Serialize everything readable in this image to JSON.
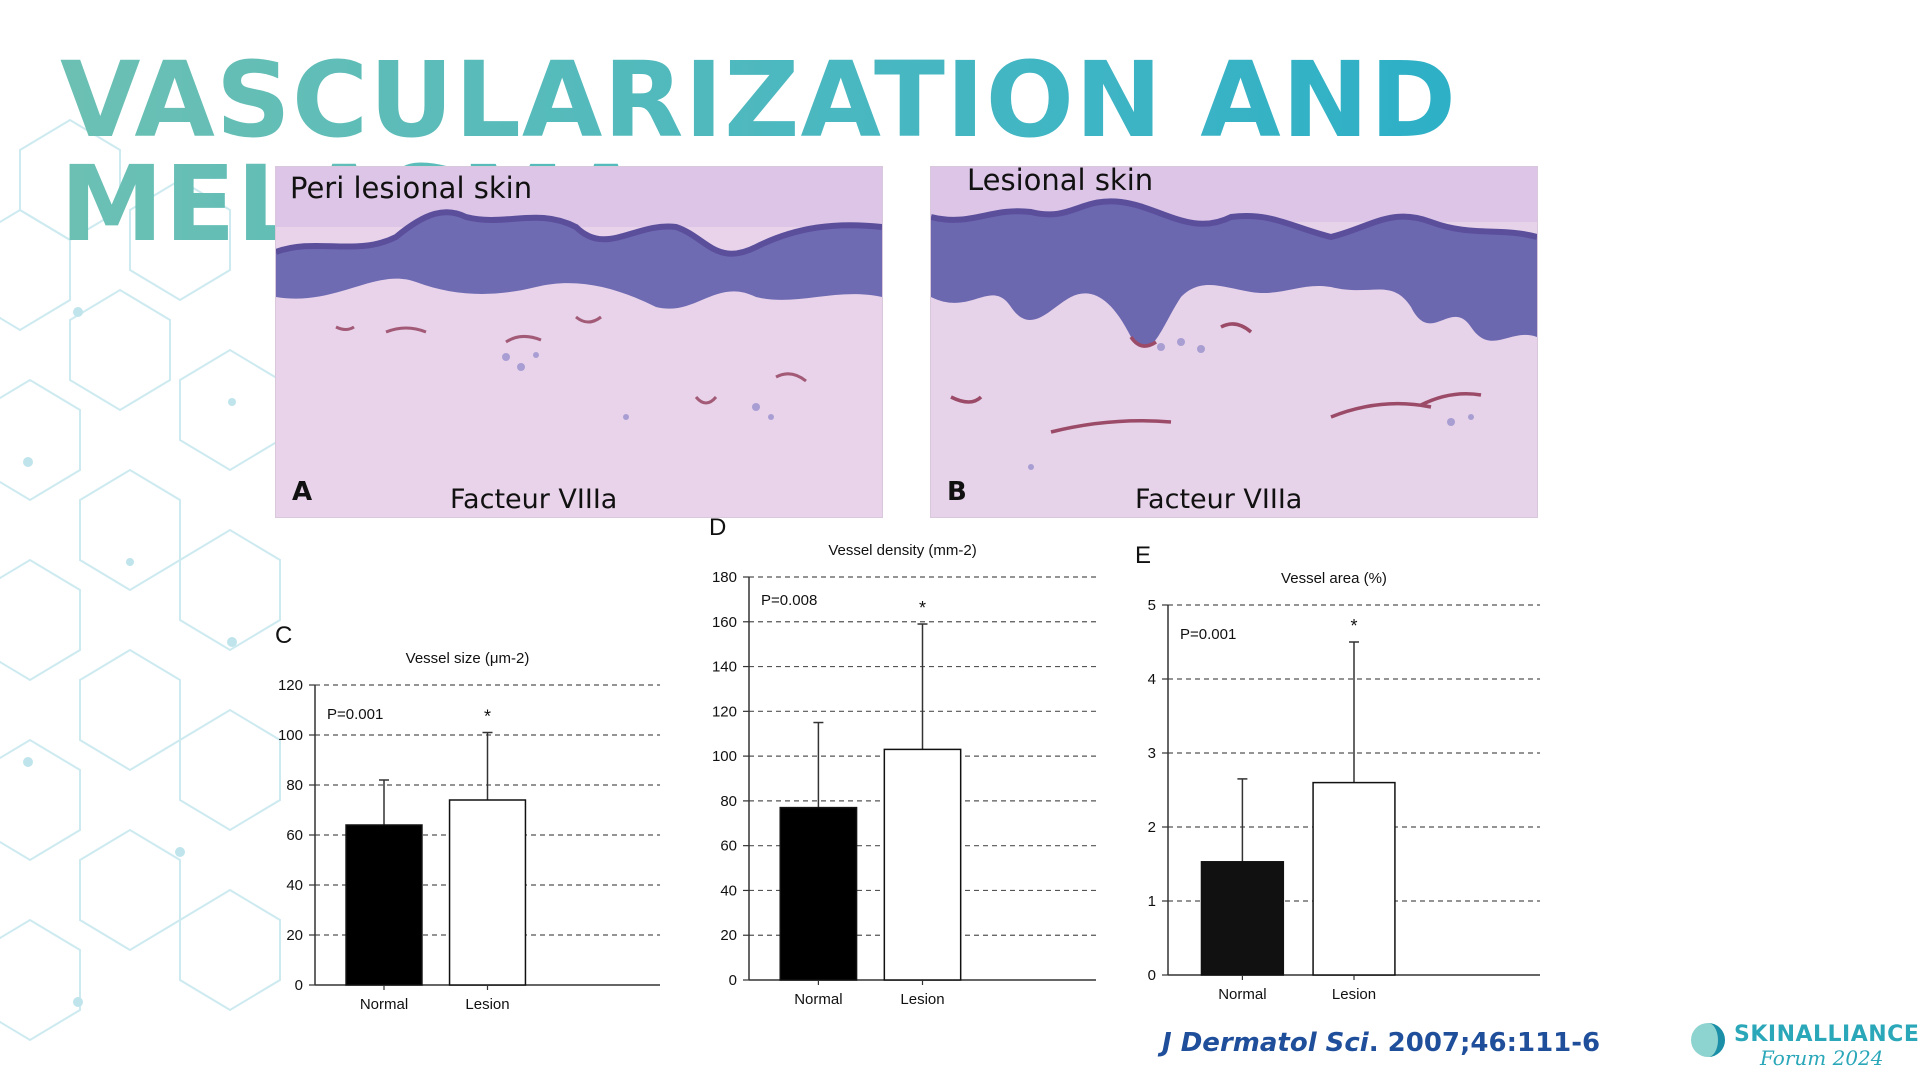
{
  "title": "VASCULARIZATION AND MELASMA",
  "histology": [
    {
      "letter": "A",
      "label": "Peri lesional  skin",
      "stain": "Facteur VIIIa"
    },
    {
      "letter": "B",
      "label": "Lesional skin",
      "stain": "Facteur VIIIa"
    }
  ],
  "chart_data": [
    {
      "panel": "C",
      "type": "bar",
      "title": "Vessel size (μm-2)",
      "categories": [
        "Normal",
        "Lesion"
      ],
      "values": [
        64,
        74
      ],
      "error": [
        18,
        27
      ],
      "ylim": [
        0,
        120
      ],
      "yticks": [
        0,
        20,
        40,
        60,
        80,
        100,
        120
      ],
      "pvalue": "P=0.001",
      "significance": "*",
      "grid": "dashed",
      "bar_colors": [
        "#000000",
        "#ffffff"
      ]
    },
    {
      "panel": "D",
      "type": "bar",
      "title": "Vessel density (mm-2)",
      "categories": [
        "Normal",
        "Lesion"
      ],
      "values": [
        77,
        103
      ],
      "error": [
        38,
        56
      ],
      "ylim": [
        0,
        180
      ],
      "yticks": [
        0,
        20,
        40,
        60,
        80,
        100,
        120,
        140,
        160,
        180
      ],
      "pvalue": "P=0.008",
      "significance": "*",
      "grid": "dashed",
      "bar_colors": [
        "#000000",
        "#ffffff"
      ]
    },
    {
      "panel": "E",
      "type": "bar",
      "title": "Vessel area (%)",
      "categories": [
        "Normal",
        "Lesion"
      ],
      "values": [
        1.53,
        2.6
      ],
      "error": [
        1.12,
        1.9
      ],
      "ylim": [
        0,
        5
      ],
      "yticks": [
        0,
        1,
        2,
        3,
        4,
        5
      ],
      "pvalue": "P=0.001",
      "significance": "*",
      "grid": "dashed",
      "bar_colors": [
        "#111111",
        "#ffffff"
      ]
    }
  ],
  "citation": {
    "journal": "J Dermatol Sci",
    "rest": ". 2007;46:111-6"
  },
  "brand": {
    "name": "SKINALLIANCE",
    "subtitle": "Forum 2024"
  },
  "colors": {
    "title_start": "#6cc0b3",
    "title_end": "#17a9c9",
    "citation": "#1f4e9b",
    "brand": "#2aa7b8",
    "hex_pattern": "#cdeaf0"
  }
}
